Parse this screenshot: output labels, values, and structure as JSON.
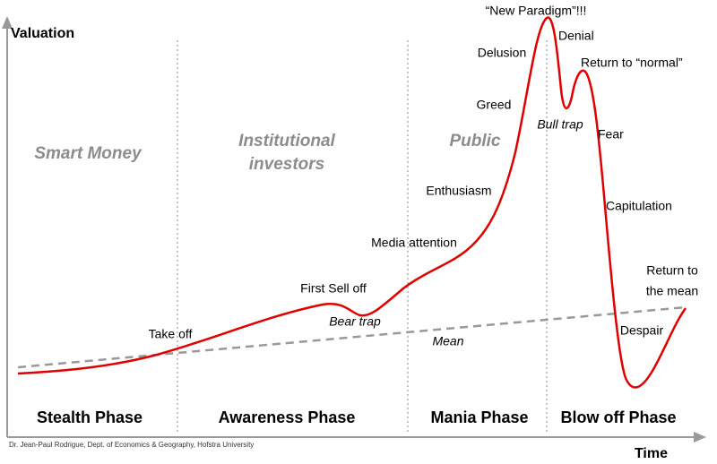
{
  "axes": {
    "y_label": "Valuation",
    "x_label": "Time"
  },
  "groups": [
    "Smart Money",
    "Institutional",
    "investors",
    "Public"
  ],
  "phases": [
    "Stealth Phase",
    "Awareness Phase",
    "Mania Phase",
    "Blow off Phase"
  ],
  "annotations": {
    "new_paradigm": "“New Paradigm”!!!",
    "denial": "Denial",
    "delusion": "Delusion",
    "return_normal": "Return to “normal”",
    "greed": "Greed",
    "bull_trap": "Bull trap",
    "fear": "Fear",
    "enthusiasm": "Enthusiasm",
    "capitulation": "Capitulation",
    "media_attention": "Media attention",
    "return_mean": [
      "Return to",
      "the mean"
    ],
    "first_sell_off": "First Sell off",
    "bear_trap": "Bear trap",
    "take_off": "Take off",
    "mean": "Mean",
    "despair": "Despair"
  },
  "credit": "Dr. Jean-Paul Rodrigue, Dept. of Economics & Geography, Hofstra University"
}
